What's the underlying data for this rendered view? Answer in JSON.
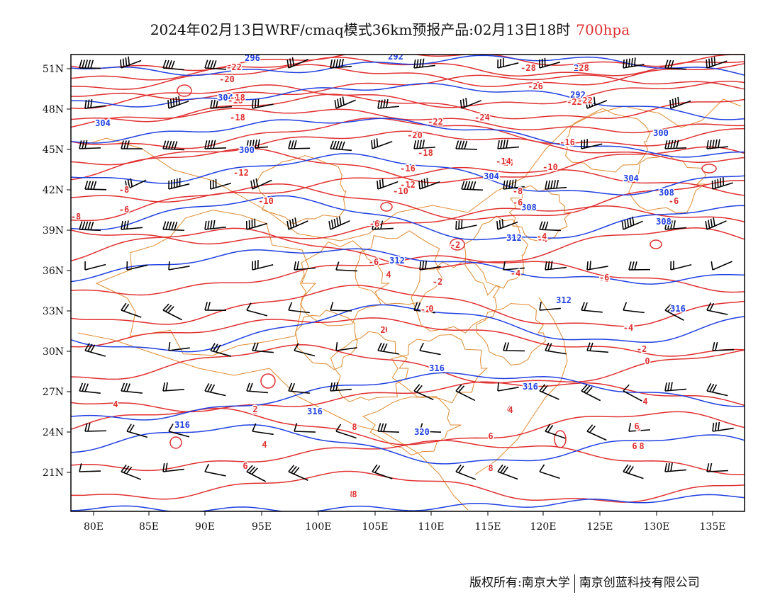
{
  "title": {
    "main": "2024年02月13日WRF/cmaq模式36km预报产品:02月13日18时",
    "level": "700hpa",
    "level_color": "#e03030"
  },
  "axes": {
    "lon_labels": [
      "80E",
      "85E",
      "90E",
      "95E",
      "100E",
      "105E",
      "110E",
      "115E",
      "120E",
      "125E",
      "130E",
      "135E"
    ],
    "lat_labels": [
      "51N",
      "48N",
      "45N",
      "42N",
      "39N",
      "36N",
      "33N",
      "30N",
      "27N",
      "24N",
      "21N"
    ]
  },
  "colors": {
    "height_contour": "#2040e0",
    "temperature_contour": "#e03030",
    "boundary": "#e08a30",
    "wind_barb": "#000000"
  },
  "height_labels": [
    "296",
    "292",
    "292",
    "292",
    "304",
    "304",
    "300",
    "300",
    "304",
    "304",
    "308",
    "308",
    "308",
    "312",
    "312",
    "312",
    "316",
    "316",
    "316",
    "316",
    "316",
    "320"
  ],
  "temp_labels": [
    "-22",
    "-20",
    "-18",
    "-18",
    "-12",
    "-10",
    "-8",
    "-6",
    "-8",
    "-6",
    "-6",
    "4",
    "-4",
    "-2",
    "0",
    "4",
    "4",
    "6",
    "6",
    "-6",
    "-2",
    "-4",
    "0",
    "-2",
    "-4",
    "2",
    "4",
    "6",
    "8",
    "8",
    "6",
    "8",
    "-26",
    "-28",
    "-28",
    "-24",
    "-22",
    "-22",
    "-20",
    "-18",
    "-16",
    "-16",
    "-14",
    "-10",
    "-12",
    "-10",
    "-8",
    "-6",
    "-4",
    "-2",
    "0",
    "2",
    "4",
    "-18",
    "-16",
    "-14",
    "-22",
    "-6",
    "6",
    "8",
    "-6",
    "4",
    "4",
    "2",
    "-4",
    "8"
  ],
  "footer": {
    "left": "版权所有:南京大学",
    "right": "南京创蓝科技有限公司"
  }
}
